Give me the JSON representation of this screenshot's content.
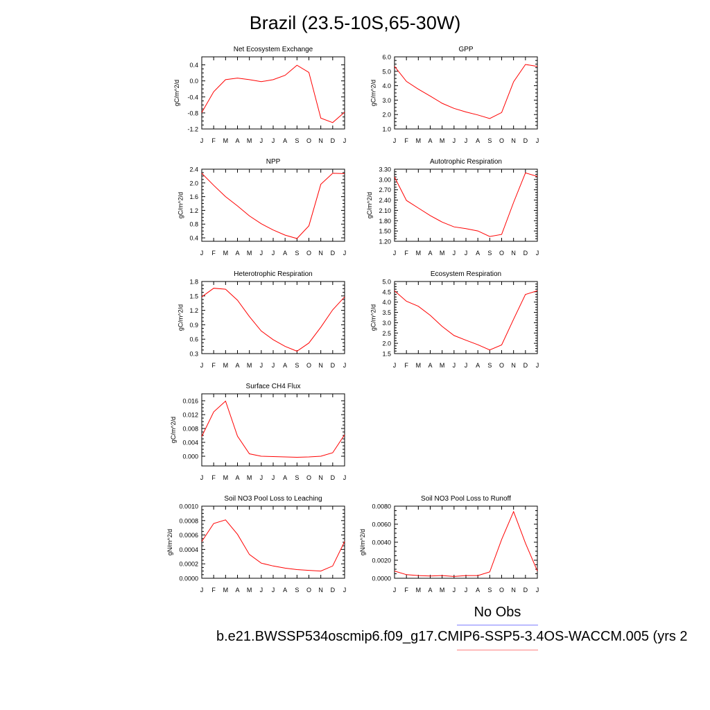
{
  "title": "Brazil (23.5-10S,65-30W)",
  "legend": {
    "obs_label": "No Obs",
    "obs_color": "#7f7fff",
    "case_label": "b.e21.BWSSP534oscmip6.f09_g17.CMIP6-SSP5-3.4OS-WACCM.005 (yrs 2",
    "case_color": "#ff7f7f"
  },
  "chart_data": [
    {
      "type": "line",
      "title": "Net Ecosystem Exchange",
      "ylabel": "gC/m^2/d",
      "x": [
        "J",
        "F",
        "M",
        "A",
        "M",
        "J",
        "J",
        "A",
        "S",
        "O",
        "N",
        "D",
        "J"
      ],
      "ylim": [
        -1.2,
        0.6
      ],
      "yticks": [
        "0.4",
        "0.0",
        "-0.4",
        "-0.8",
        "-1.2"
      ],
      "yticks_values": [
        0.4,
        0.0,
        -0.4,
        -0.8,
        -1.2
      ],
      "series": [
        {
          "color": "#ff0000",
          "values": [
            -0.79,
            -0.27,
            0.03,
            0.07,
            0.03,
            -0.02,
            0.03,
            0.14,
            0.39,
            0.21,
            -0.93,
            -1.04,
            -0.78
          ]
        }
      ]
    },
    {
      "type": "line",
      "title": "GPP",
      "ylabel": "gC/m^2/d",
      "x": [
        "J",
        "F",
        "M",
        "A",
        "M",
        "J",
        "J",
        "A",
        "S",
        "O",
        "N",
        "D",
        "J"
      ],
      "ylim": [
        1.0,
        6.0
      ],
      "yticks": [
        "6.0",
        "5.0",
        "4.0",
        "3.0",
        "2.0",
        "1.0"
      ],
      "yticks_values": [
        6.0,
        5.0,
        4.0,
        3.0,
        2.0,
        1.0
      ],
      "series": [
        {
          "color": "#ff0000",
          "values": [
            5.34,
            4.3,
            3.76,
            3.28,
            2.78,
            2.43,
            2.18,
            1.97,
            1.72,
            2.14,
            4.27,
            5.47,
            5.34
          ]
        }
      ]
    },
    {
      "type": "line",
      "title": "NPP",
      "ylabel": "gC/m^2/d",
      "x": [
        "J",
        "F",
        "M",
        "A",
        "M",
        "J",
        "J",
        "A",
        "S",
        "O",
        "N",
        "D",
        "J"
      ],
      "ylim": [
        0.3,
        2.4
      ],
      "yticks": [
        "2.4",
        "2.0",
        "1.6",
        "1.2",
        "0.8",
        "0.4"
      ],
      "yticks_values": [
        2.4,
        2.0,
        1.6,
        1.2,
        0.8,
        0.4
      ],
      "series": [
        {
          "color": "#ff0000",
          "values": [
            2.28,
            1.93,
            1.6,
            1.33,
            1.04,
            0.81,
            0.63,
            0.48,
            0.38,
            0.75,
            1.96,
            2.28,
            2.27
          ]
        }
      ]
    },
    {
      "type": "line",
      "title": "Autotrophic Respiration",
      "ylabel": "gC/m^2/d",
      "x": [
        "J",
        "F",
        "M",
        "A",
        "M",
        "J",
        "J",
        "A",
        "S",
        "O",
        "N",
        "D",
        "J"
      ],
      "ylim": [
        1.2,
        3.3
      ],
      "yticks": [
        "3.30",
        "3.00",
        "2.70",
        "2.40",
        "2.10",
        "1.80",
        "1.50",
        "1.20"
      ],
      "yticks_values": [
        3.3,
        3.0,
        2.7,
        2.4,
        2.1,
        1.8,
        1.5,
        1.2
      ],
      "series": [
        {
          "color": "#ff0000",
          "values": [
            3.07,
            2.39,
            2.17,
            1.95,
            1.76,
            1.62,
            1.57,
            1.5,
            1.34,
            1.4,
            2.33,
            3.19,
            3.09
          ]
        }
      ]
    },
    {
      "type": "line",
      "title": "Heterotrophic Respiration",
      "ylabel": "gC/m^2/d",
      "x": [
        "J",
        "F",
        "M",
        "A",
        "M",
        "J",
        "J",
        "A",
        "S",
        "O",
        "N",
        "D",
        "J"
      ],
      "ylim": [
        0.3,
        1.8
      ],
      "yticks": [
        "1.8",
        "1.5",
        "1.2",
        "0.9",
        "0.6",
        "0.3"
      ],
      "yticks_values": [
        1.8,
        1.5,
        1.2,
        0.9,
        0.6,
        0.3
      ],
      "series": [
        {
          "color": "#ff0000",
          "values": [
            1.48,
            1.66,
            1.64,
            1.41,
            1.07,
            0.77,
            0.59,
            0.45,
            0.35,
            0.52,
            0.85,
            1.21,
            1.48
          ]
        }
      ]
    },
    {
      "type": "line",
      "title": "Ecosystem Respiration",
      "ylabel": "gC/m^2/d",
      "x": [
        "J",
        "F",
        "M",
        "A",
        "M",
        "J",
        "J",
        "A",
        "S",
        "O",
        "N",
        "D",
        "J"
      ],
      "ylim": [
        1.5,
        5.0
      ],
      "yticks": [
        "5.0",
        "4.5",
        "4.0",
        "3.5",
        "3.0",
        "2.5",
        "2.0",
        "1.5"
      ],
      "yticks_values": [
        5.0,
        4.5,
        4.0,
        3.5,
        3.0,
        2.5,
        2.0,
        1.5
      ],
      "series": [
        {
          "color": "#ff0000",
          "values": [
            4.55,
            4.04,
            3.8,
            3.36,
            2.82,
            2.38,
            2.15,
            1.93,
            1.68,
            1.92,
            3.17,
            4.37,
            4.55
          ]
        }
      ]
    },
    {
      "type": "line",
      "title": "Surface CH4 Flux",
      "ylabel": "gC/m^2/d",
      "x": [
        "J",
        "F",
        "M",
        "A",
        "M",
        "J",
        "J",
        "A",
        "S",
        "O",
        "N",
        "D",
        "J"
      ],
      "ylim": [
        -0.0028,
        0.018
      ],
      "yticks": [
        "0.016",
        "0.012",
        "0.008",
        "0.004",
        "0.000"
      ],
      "yticks_values": [
        0.016,
        0.012,
        0.008,
        0.004,
        0.0
      ],
      "series": [
        {
          "color": "#ff0000",
          "values": [
            0.0057,
            0.0128,
            0.0159,
            0.0058,
            0.0007,
            0.0,
            -0.0001,
            -0.0002,
            -0.0003,
            -0.0002,
            0.0,
            0.001,
            0.0062
          ]
        }
      ]
    },
    {
      "type": "line",
      "title": "Soil NO3 Pool Loss to Leaching",
      "ylabel": "gN/m^2/d",
      "x": [
        "J",
        "F",
        "M",
        "A",
        "M",
        "J",
        "J",
        "A",
        "S",
        "O",
        "N",
        "D",
        "J"
      ],
      "ylim": [
        0.0,
        0.001
      ],
      "yticks": [
        "0.0010",
        "0.0008",
        "0.0006",
        "0.0004",
        "0.0002",
        "0.0000"
      ],
      "yticks_values": [
        0.001,
        0.0008,
        0.0006,
        0.0004,
        0.0002,
        0.0
      ],
      "series": [
        {
          "color": "#ff0000",
          "values": [
            0.00051,
            0.00076,
            0.00081,
            0.00061,
            0.00033,
            0.00021,
            0.00017,
            0.00014,
            0.00012,
            0.00011,
            0.0001,
            0.00017,
            0.00051
          ]
        }
      ]
    },
    {
      "type": "line",
      "title": "Soil NO3 Pool Loss to Runoff",
      "ylabel": "gN/m^2/d",
      "x": [
        "J",
        "F",
        "M",
        "A",
        "M",
        "J",
        "J",
        "A",
        "S",
        "O",
        "N",
        "D",
        "J"
      ],
      "ylim": [
        0.0,
        0.008
      ],
      "yticks": [
        "0.0080",
        "0.0060",
        "0.0040",
        "0.0020",
        "0.0000"
      ],
      "yticks_values": [
        0.008,
        0.006,
        0.004,
        0.002,
        0.0
      ],
      "series": [
        {
          "color": "#ff0000",
          "values": [
            0.0008,
            0.0004,
            0.0003,
            0.00025,
            0.0003,
            0.0002,
            0.0003,
            0.0003,
            0.0007,
            0.0043,
            0.0074,
            0.0039,
            0.0008
          ]
        }
      ]
    }
  ]
}
